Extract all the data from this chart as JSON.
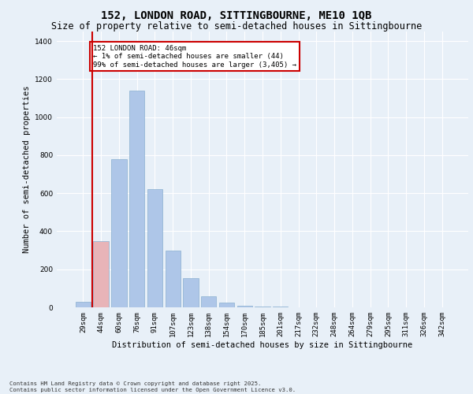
{
  "title": "152, LONDON ROAD, SITTINGBOURNE, ME10 1QB",
  "subtitle": "Size of property relative to semi-detached houses in Sittingbourne",
  "xlabel": "Distribution of semi-detached houses by size in Sittingbourne",
  "ylabel": "Number of semi-detached properties",
  "categories": [
    "29sqm",
    "44sqm",
    "60sqm",
    "76sqm",
    "91sqm",
    "107sqm",
    "123sqm",
    "138sqm",
    "154sqm",
    "170sqm",
    "185sqm",
    "201sqm",
    "217sqm",
    "232sqm",
    "248sqm",
    "264sqm",
    "279sqm",
    "295sqm",
    "311sqm",
    "326sqm",
    "342sqm"
  ],
  "values": [
    30,
    350,
    780,
    1140,
    620,
    300,
    155,
    60,
    25,
    10,
    5,
    3,
    1,
    0,
    0,
    0,
    0,
    0,
    0,
    0,
    0
  ],
  "bar_color": "#aec6e8",
  "highlight_bar_index": 1,
  "highlight_bar_color": "#e8b4b8",
  "highlight_line_color": "#cc0000",
  "background_color": "#e8f0f8",
  "grid_color": "#ffffff",
  "annotation_title": "152 LONDON ROAD: 46sqm",
  "annotation_line1": "← 1% of semi-detached houses are smaller (44)",
  "annotation_line2": "99% of semi-detached houses are larger (3,405) →",
  "annotation_box_color": "#cc0000",
  "ylim": [
    0,
    1450
  ],
  "yticks": [
    0,
    200,
    400,
    600,
    800,
    1000,
    1200,
    1400
  ],
  "footnote1": "Contains HM Land Registry data © Crown copyright and database right 2025.",
  "footnote2": "Contains public sector information licensed under the Open Government Licence v3.0.",
  "title_fontsize": 10,
  "subtitle_fontsize": 8.5,
  "tick_fontsize": 6.5,
  "label_fontsize": 7.5
}
